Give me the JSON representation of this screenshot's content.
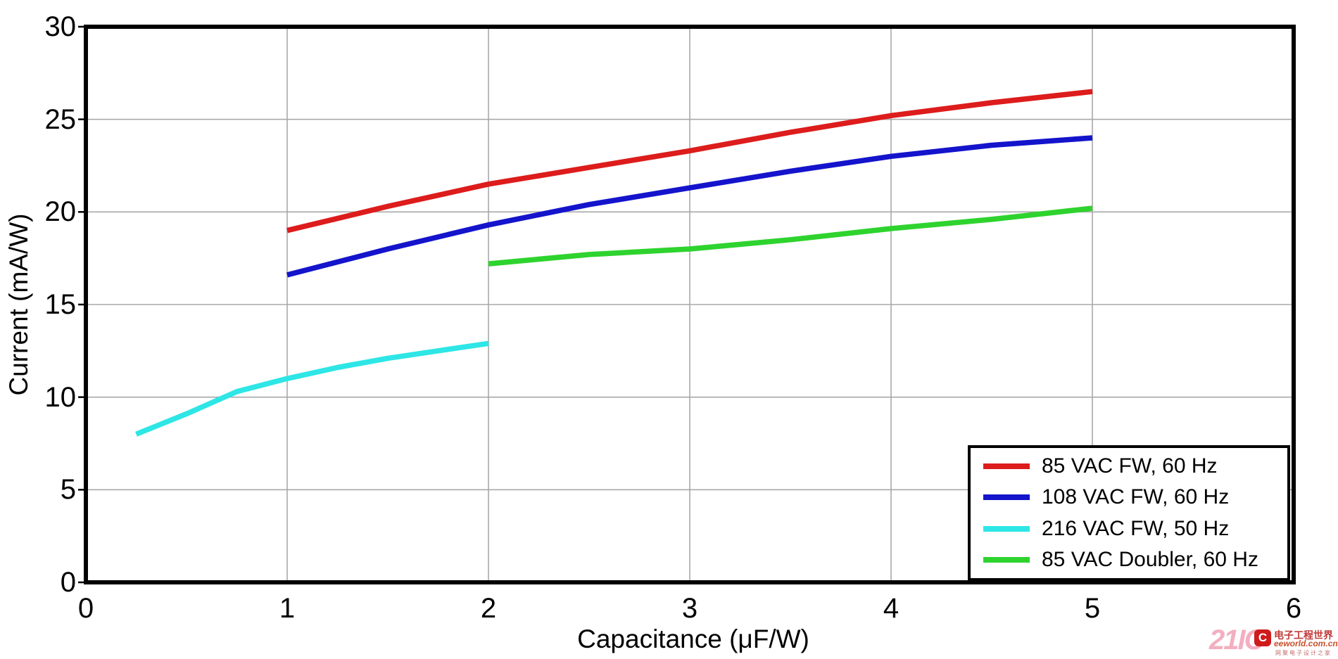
{
  "chart_data": {
    "type": "line",
    "title": "",
    "xlabel": "Capacitance (μF/W)",
    "ylabel": "Current (mA/W)",
    "xlim": [
      0,
      6
    ],
    "ylim": [
      0,
      30
    ],
    "x_ticks": [
      0,
      1,
      2,
      3,
      4,
      5,
      6
    ],
    "y_ticks": [
      0,
      5,
      10,
      15,
      20,
      25,
      30
    ],
    "grid": true,
    "grid_color": "#a8a8a8",
    "frame_color": "#000000",
    "legend_position": "bottom-right",
    "series": [
      {
        "name": "85 VAC FW, 60 Hz",
        "color": "#dd1c1c",
        "x": [
          1,
          1.5,
          2,
          2.5,
          3,
          3.5,
          4,
          4.5,
          5
        ],
        "y": [
          19.0,
          20.3,
          21.5,
          22.4,
          23.3,
          24.3,
          25.2,
          25.9,
          26.5
        ]
      },
      {
        "name": "108 VAC FW, 60 Hz",
        "color": "#1414cc",
        "x": [
          1,
          1.5,
          2,
          2.5,
          3,
          3.5,
          4,
          4.5,
          5
        ],
        "y": [
          16.6,
          18.0,
          19.3,
          20.4,
          21.3,
          22.2,
          23.0,
          23.6,
          24.0
        ]
      },
      {
        "name": "216 VAC FW, 50 Hz",
        "color": "#2ee6e6",
        "x": [
          0.25,
          0.5,
          0.75,
          1,
          1.25,
          1.5,
          1.75,
          2
        ],
        "y": [
          8.0,
          9.1,
          10.3,
          11.0,
          11.6,
          12.1,
          12.5,
          12.9
        ]
      },
      {
        "name": "85 VAC Doubler, 60 Hz",
        "color": "#2ed32e",
        "x": [
          2,
          2.5,
          3,
          3.5,
          4,
          4.5,
          5
        ],
        "y": [
          17.2,
          17.7,
          18.0,
          18.5,
          19.1,
          19.6,
          20.2
        ]
      }
    ]
  },
  "watermark": {
    "big_text": "21IC",
    "logo_letter": "C",
    "site_name": "电子工程世界",
    "site_url": "eeworld.com.cn",
    "tagline": "网聚电子设计之家"
  }
}
